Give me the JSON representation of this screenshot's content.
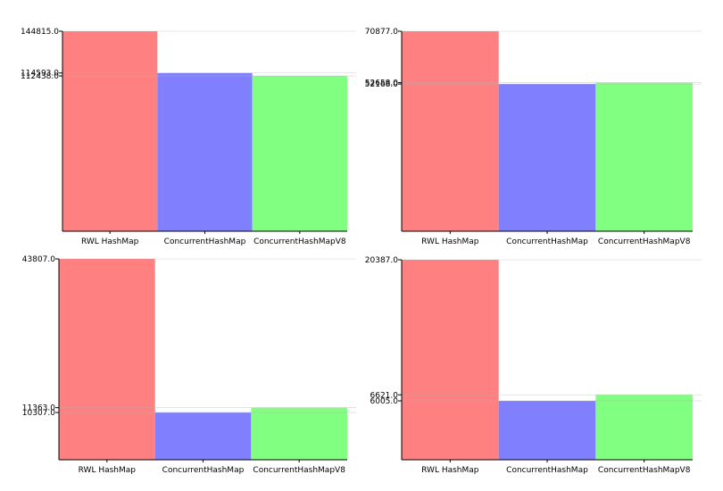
{
  "chart_data": [
    {
      "type": "bar",
      "categories": [
        "RWL HashMap",
        "ConcurrentHashMap",
        "ConcurrentHashMapV8"
      ],
      "values": [
        144815.0,
        114593.0,
        112438.0
      ],
      "tick_labels": [
        "144815.0",
        "114593.0",
        "112438.0"
      ],
      "colors": [
        "#ff8080",
        "#8080ff",
        "#80ff80"
      ],
      "ylim": [
        0,
        144815.0
      ]
    },
    {
      "type": "bar",
      "categories": [
        "RWL HashMap",
        "ConcurrentHashMap",
        "ConcurrentHashMapV8"
      ],
      "values": [
        70877.0,
        52168.0,
        52658.0
      ],
      "tick_labels": [
        "70877.0",
        "52658.0",
        "52168.0"
      ],
      "colors": [
        "#ff8080",
        "#8080ff",
        "#80ff80"
      ],
      "ylim": [
        0,
        70877.0
      ]
    },
    {
      "type": "bar",
      "categories": [
        "RWL HashMap",
        "ConcurrentHashMap",
        "ConcurrentHashMapV8"
      ],
      "values": [
        43807.0,
        10307.0,
        11363.0
      ],
      "tick_labels": [
        "43807.0",
        "11363.0",
        "10307.0"
      ],
      "colors": [
        "#ff8080",
        "#8080ff",
        "#80ff80"
      ],
      "ylim": [
        0,
        43807.0
      ]
    },
    {
      "type": "bar",
      "categories": [
        "RWL HashMap",
        "ConcurrentHashMap",
        "ConcurrentHashMapV8"
      ],
      "values": [
        20387.0,
        6005.0,
        6621.0
      ],
      "tick_labels": [
        "20387.0",
        "6621.0",
        "6005.0"
      ],
      "colors": [
        "#ff8080",
        "#8080ff",
        "#80ff80"
      ],
      "ylim": [
        0,
        20387.0
      ]
    }
  ]
}
